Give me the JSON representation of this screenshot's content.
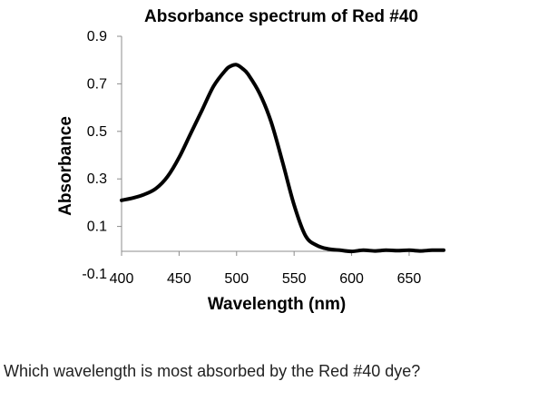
{
  "chart_data": {
    "type": "line",
    "title": "Absorbance spectrum of Red #40",
    "xlabel": "Wavelength (nm)",
    "ylabel": "Absorbance",
    "x_ticks": [
      400,
      450,
      500,
      550,
      600,
      650
    ],
    "y_ticks": [
      -0.1,
      0.1,
      0.3,
      0.5,
      0.7,
      0.9
    ],
    "xlim": [
      400,
      680
    ],
    "ylim": [
      -0.1,
      0.9
    ],
    "grid": false,
    "series": [
      {
        "color": "#000000",
        "x": [
          400,
          410,
          420,
          430,
          440,
          450,
          460,
          470,
          480,
          490,
          495,
          500,
          505,
          510,
          520,
          530,
          540,
          550,
          560,
          570,
          580,
          590,
          600,
          610,
          620,
          630,
          640,
          650,
          660,
          670,
          680
        ],
        "y": [
          0.21,
          0.22,
          0.235,
          0.26,
          0.31,
          0.39,
          0.49,
          0.59,
          0.69,
          0.755,
          0.775,
          0.78,
          0.765,
          0.74,
          0.66,
          0.54,
          0.37,
          0.19,
          0.06,
          0.02,
          0.005,
          0.0,
          -0.005,
          0.0,
          -0.003,
          0.0,
          -0.002,
          0.0,
          -0.003,
          0.0,
          0.0
        ]
      }
    ]
  },
  "question": "Which wavelength is most absorbed by the Red #40 dye?"
}
